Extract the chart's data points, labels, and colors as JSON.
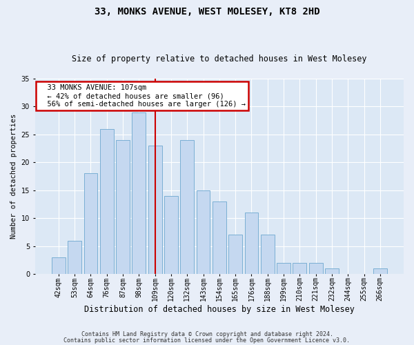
{
  "title_line1": "33, MONKS AVENUE, WEST MOLESEY, KT8 2HD",
  "title_line2": "Size of property relative to detached houses in West Molesey",
  "xlabel": "Distribution of detached houses by size in West Molesey",
  "ylabel": "Number of detached properties",
  "footnote1": "Contains HM Land Registry data © Crown copyright and database right 2024.",
  "footnote2": "Contains public sector information licensed under the Open Government Licence v3.0.",
  "annotation_line1": "  33 MONKS AVENUE: 107sqm",
  "annotation_line2": "  ← 42% of detached houses are smaller (96)",
  "annotation_line3": "  56% of semi-detached houses are larger (126) →",
  "bar_labels": [
    "42sqm",
    "53sqm",
    "64sqm",
    "76sqm",
    "87sqm",
    "98sqm",
    "109sqm",
    "120sqm",
    "132sqm",
    "143sqm",
    "154sqm",
    "165sqm",
    "176sqm",
    "188sqm",
    "199sqm",
    "210sqm",
    "221sqm",
    "232sqm",
    "244sqm",
    "255sqm",
    "266sqm"
  ],
  "bar_values": [
    3,
    6,
    18,
    26,
    24,
    29,
    23,
    14,
    24,
    15,
    13,
    7,
    11,
    7,
    2,
    2,
    2,
    1,
    0,
    0,
    1
  ],
  "highlight_index": 6,
  "bar_color": "#c5d8f0",
  "bar_edge_color": "#7aafd4",
  "highlight_line_color": "#cc0000",
  "annotation_box_edge_color": "#cc0000",
  "fig_bg_color": "#e8eef8",
  "plot_bg_color": "#dce8f5",
  "ylim": [
    0,
    35
  ],
  "yticks": [
    0,
    5,
    10,
    15,
    20,
    25,
    30,
    35
  ],
  "title1_fontsize": 10,
  "title2_fontsize": 8.5,
  "ylabel_fontsize": 7.5,
  "xlabel_fontsize": 8.5,
  "tick_fontsize": 7,
  "annot_fontsize": 7.5,
  "footnote_fontsize": 6
}
